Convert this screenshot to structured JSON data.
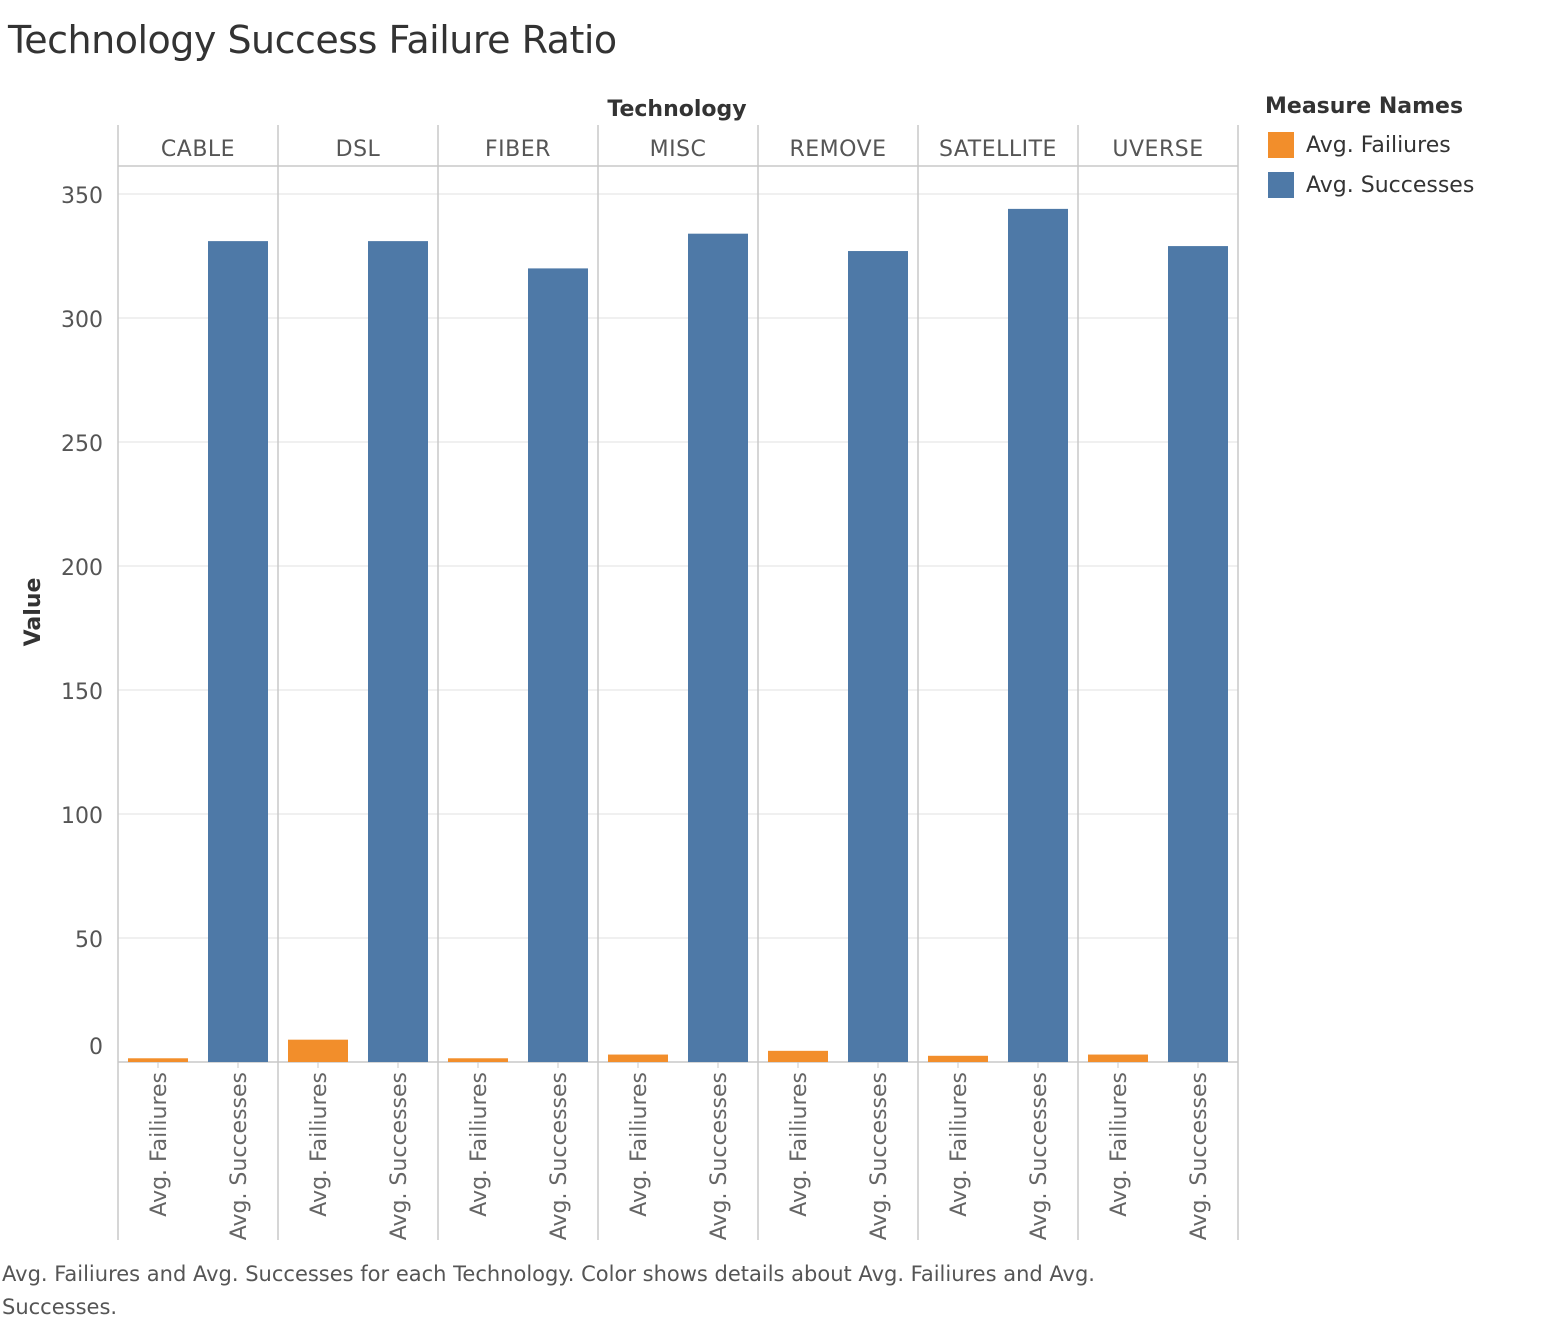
{
  "chart_data": {
    "type": "bar",
    "title": "Technology Success Failure Ratio",
    "column_header": "Technology",
    "ylabel": "Value",
    "ylim": [
      0,
      350
    ],
    "yticks": [
      0,
      50,
      100,
      150,
      200,
      250,
      300,
      350
    ],
    "grid": true,
    "categories": [
      "CABLE",
      "DSL",
      "FIBER",
      "MISC",
      "REMOVE",
      "SATELLITE",
      "UVERSE"
    ],
    "series": [
      {
        "name": "Avg. Failiures",
        "color": "#f28e2b",
        "values": [
          1.5,
          9,
          1.5,
          3,
          4.5,
          2.5,
          3
        ]
      },
      {
        "name": "Avg. Successes",
        "color": "#4e79a7",
        "values": [
          331,
          331,
          320,
          334,
          327,
          344,
          329
        ]
      }
    ],
    "legend": {
      "title": "Measure Names",
      "placement": "right"
    },
    "caption": "Avg. Failiures and Avg. Successes for each Technology.  Color shows details about Avg. Failiures and Avg. Successes."
  }
}
